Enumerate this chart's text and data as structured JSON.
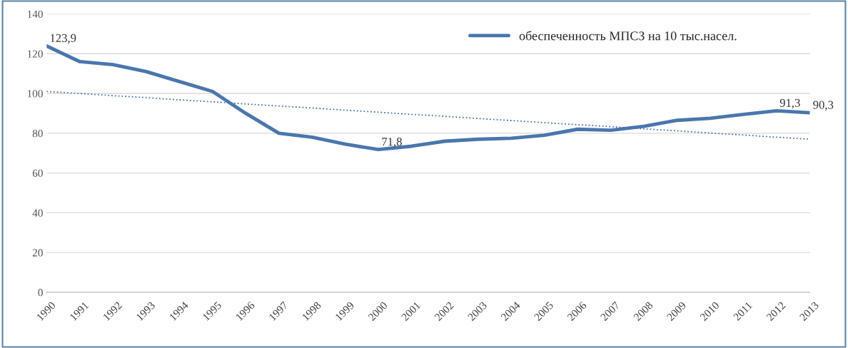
{
  "chart_data": {
    "type": "line",
    "categories": [
      "1990",
      "1991",
      "1992",
      "1993",
      "1994",
      "1995",
      "1996",
      "1997",
      "1998",
      "1999",
      "2000",
      "2001",
      "2002",
      "2003",
      "2004",
      "2005",
      "2006",
      "2007",
      "2008",
      "2009",
      "2010",
      "2011",
      "2012",
      "2013"
    ],
    "series": [
      {
        "name": "обеспеченность МПСЗ на 10 тыс.насел.",
        "color": "#4a76ad",
        "line_style": "solid",
        "values": [
          123.9,
          116,
          114.5,
          111,
          106,
          101,
          90,
          80,
          78,
          74.5,
          71.8,
          73.5,
          76,
          77,
          77.5,
          79,
          82,
          81.5,
          83.5,
          86.5,
          87.5,
          89.5,
          91.3,
          90.3
        ],
        "value_labels": [
          "123,9",
          null,
          null,
          null,
          null,
          null,
          null,
          null,
          null,
          null,
          "71,8",
          null,
          null,
          null,
          null,
          null,
          null,
          null,
          null,
          null,
          null,
          null,
          "91,3",
          "90,3"
        ]
      },
      {
        "type": "line",
        "color": "#4a76ad",
        "line_style": "dotted",
        "values": [
          101,
          100,
          98.9,
          97.9,
          96.8,
          95.8,
          94.7,
          93.7,
          92.7,
          91.6,
          90.6,
          89.5,
          88.5,
          87.4,
          86.4,
          85.3,
          84.3,
          83.3,
          82.2,
          81.2,
          80.1,
          79.1,
          78,
          77
        ]
      }
    ],
    "ylim": [
      0,
      140
    ],
    "yticks": [
      0,
      20,
      40,
      60,
      80,
      100,
      120,
      140
    ],
    "grid": "y",
    "legend": "top right"
  }
}
